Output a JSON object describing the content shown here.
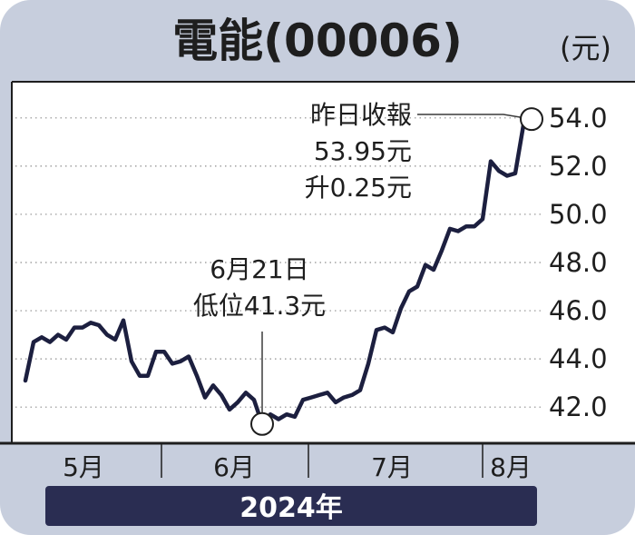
{
  "title": "電能(00006)",
  "unit": "(元)",
  "colors": {
    "line": "#1c1f3f",
    "background": "#c7cedd",
    "banner": "#2a2d52"
  },
  "chart_data": {
    "type": "line",
    "title": "電能(00006)",
    "ylabel": "(元)",
    "xlabel": "2024年",
    "ylim": [
      40.5,
      55.5
    ],
    "yticks": [
      42.0,
      44.0,
      46.0,
      48.0,
      50.0,
      52.0,
      54.0
    ],
    "ytick_labels": [
      "42.0",
      "44.0",
      "46.0",
      "48.0",
      "50.0",
      "52.0",
      "54.0"
    ],
    "xtick_labels": [
      "5月",
      "6月",
      "7月",
      "8月"
    ],
    "grid": true,
    "series": [
      {
        "values": [
          43.1,
          44.7,
          44.9,
          44.7,
          45.0,
          44.8,
          45.3,
          45.3,
          45.5,
          45.4,
          45.0,
          44.8,
          45.6,
          43.9,
          43.3,
          43.3,
          44.3,
          44.3,
          43.8,
          43.9,
          44.1,
          43.3,
          42.4,
          42.9,
          42.5,
          41.9,
          42.2,
          42.6,
          42.3,
          41.3,
          41.7,
          41.5,
          41.7,
          41.6,
          42.3,
          42.4,
          42.5,
          42.6,
          42.2,
          42.4,
          42.5,
          42.7,
          43.8,
          45.2,
          45.3,
          45.1,
          46.1,
          46.8,
          47.0,
          47.9,
          47.7,
          48.5,
          49.4,
          49.3,
          49.5,
          49.5,
          49.8,
          52.2,
          51.8,
          51.6,
          51.7,
          53.7,
          53.95
        ]
      }
    ],
    "annotations": [
      {
        "lines": [
          "昨日收報",
          "53.95元",
          "升0.25元"
        ],
        "value": 53.95
      },
      {
        "lines": [
          "6月21日",
          "低位41.3元"
        ],
        "value": 41.3
      }
    ]
  }
}
